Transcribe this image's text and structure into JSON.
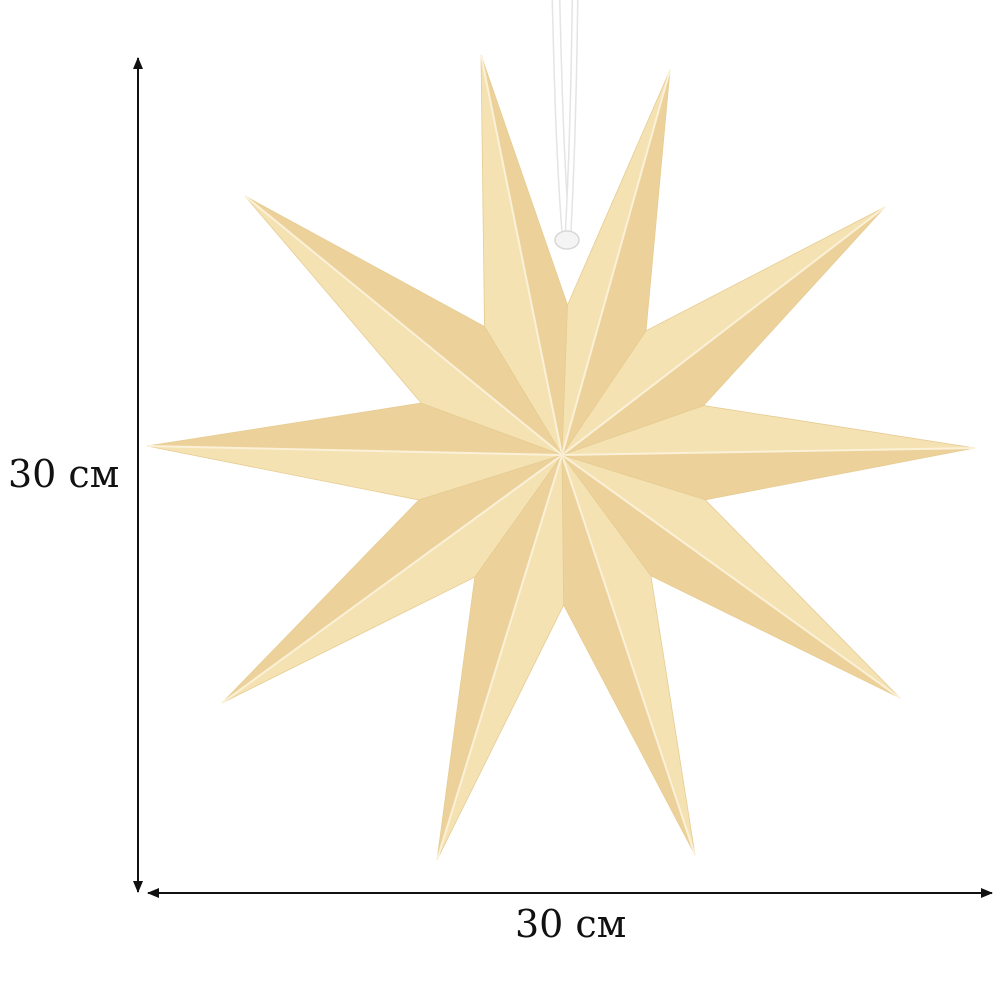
{
  "dimensions": {
    "height_label": "30 см",
    "width_label": "30 см"
  },
  "product": {
    "name": "paper-star",
    "points": 10,
    "colors": {
      "paper_light": "#f5e2b3",
      "paper_dark": "#ecd29a",
      "fold_line": "#fbf1d8",
      "cord": "#ffffff",
      "arrow": "#111111"
    }
  }
}
